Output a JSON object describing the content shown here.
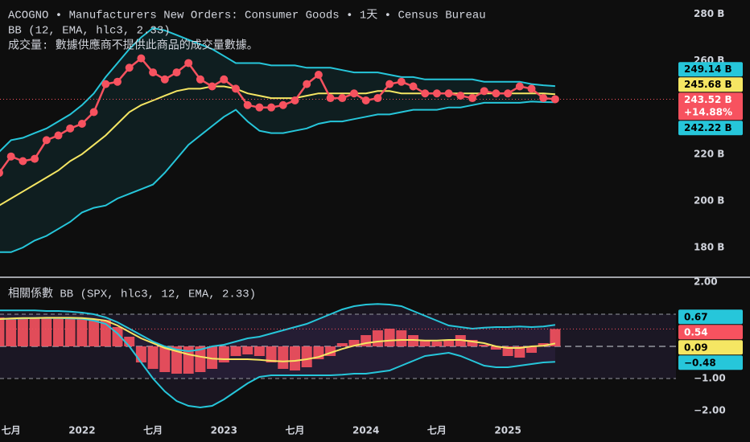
{
  "chart_data": [
    {
      "type": "line",
      "title": "ACOGNO • Manufacturers New Orders: Consumer Goods • 1天 • Census Bureau",
      "subtitle": "BB (12, EMA, hlc3, 2.33)",
      "annotation": "成交量: 數據供應商不提供此商品的成交量數據。",
      "categories": [
        null,
        "七月",
        null,
        null,
        null,
        null,
        null,
        "2022",
        null,
        null,
        null,
        null,
        null,
        "七月",
        null,
        null,
        null,
        null,
        null,
        "2023",
        null,
        null,
        null,
        null,
        null,
        "七月",
        null,
        null,
        null,
        null,
        null,
        "2024",
        null,
        null,
        null,
        null,
        null,
        "七月",
        null,
        null,
        null,
        null,
        null,
        "2025",
        null,
        null,
        null,
        null
      ],
      "series": [
        {
          "color": "#f7525f",
          "markers": true,
          "values": [
            212,
            219,
            217,
            218,
            226,
            228,
            231,
            233,
            238,
            250,
            251,
            257,
            261,
            255,
            252,
            255,
            259,
            252,
            249,
            252,
            248,
            241,
            240,
            240,
            241,
            243,
            250,
            254,
            244,
            244,
            246,
            243,
            244,
            250,
            251,
            249,
            246,
            246,
            246,
            245,
            244,
            247,
            246,
            246,
            249,
            248,
            244,
            243.52
          ]
        },
        {
          "color": "#f5e663",
          "values": [
            198,
            201,
            204,
            207,
            210,
            213,
            217,
            220,
            224,
            228,
            233,
            238,
            241,
            243,
            245,
            247,
            248,
            248,
            249,
            249,
            248,
            246,
            245,
            244,
            244,
            244,
            245,
            246,
            246,
            246,
            246,
            246,
            247,
            247,
            246,
            246,
            246,
            246,
            246,
            246,
            246,
            246,
            246,
            246,
            246,
            246,
            246,
            245.68
          ]
        },
        {
          "color": "#26c6da",
          "values": [
            221,
            226,
            227,
            229,
            231,
            234,
            237,
            241,
            246,
            253,
            259,
            265,
            270,
            274,
            273,
            271,
            269,
            267,
            265,
            262,
            259,
            259,
            259,
            258,
            258,
            258,
            257,
            257,
            257,
            256,
            255,
            255,
            255,
            254,
            253,
            253,
            252,
            252,
            252,
            252,
            252,
            251,
            251,
            251,
            251,
            250,
            249.5,
            249.14
          ]
        },
        {
          "color": "#26c6da",
          "values": [
            178,
            178,
            180,
            183,
            185,
            188,
            191,
            195,
            197,
            198,
            201,
            203,
            205,
            207,
            212,
            218,
            224,
            228,
            232,
            236,
            239,
            234,
            230,
            229,
            229,
            230,
            231,
            233,
            234,
            234,
            235,
            236,
            237,
            237,
            238,
            239,
            239,
            239,
            240,
            240,
            241,
            242,
            242,
            242,
            242,
            242.5,
            242.3,
            242.22
          ]
        }
      ],
      "band_fill": "rgba(38,198,218,0.09)",
      "ylim": [
        169,
        286
      ],
      "yticks": [
        {
          "value": 280,
          "label": "280 B"
        },
        {
          "value": 260,
          "label": "260 B"
        },
        {
          "value": 220,
          "label": "220 B"
        },
        {
          "value": 200,
          "label": "200 B"
        },
        {
          "value": 180,
          "label": "180 B"
        }
      ],
      "price_labels": [
        {
          "value": 249.14,
          "label": "249.14 B",
          "color": "#26c6da",
          "text_color": "#000000"
        },
        {
          "value": 245.68,
          "label": "245.68 B",
          "color": "#f5e663",
          "text_color": "#000000"
        },
        {
          "value": 243.52,
          "label": "243.52 B",
          "change": "+14.88%",
          "color": "#f7525f",
          "text_color": "#ffffff",
          "price_line": true
        },
        {
          "value": 242.22,
          "label": "242.22 B",
          "color": "#26c6da",
          "text_color": "#000000"
        }
      ]
    },
    {
      "type": "bar",
      "title": "相關係數 BB (SPX, hlc3, 12, EMA, 2.33)",
      "values": [
        0.9,
        0.88,
        0.88,
        0.9,
        0.9,
        0.9,
        0.9,
        0.88,
        0.85,
        0.82,
        0.6,
        0.3,
        -0.5,
        -0.7,
        -0.8,
        -0.85,
        -0.85,
        -0.8,
        -0.7,
        -0.5,
        -0.3,
        -0.25,
        -0.3,
        -0.5,
        -0.7,
        -0.75,
        -0.65,
        -0.4,
        -0.3,
        0.1,
        0.2,
        0.35,
        0.5,
        0.55,
        0.5,
        0.35,
        0.2,
        0.15,
        0.2,
        0.35,
        0.2,
        0.05,
        -0.1,
        -0.3,
        -0.35,
        -0.2,
        0.1,
        0.54
      ],
      "color": "#f7525f",
      "series": [
        {
          "color": "#f5e663",
          "values": [
            0.85,
            0.87,
            0.88,
            0.88,
            0.89,
            0.89,
            0.89,
            0.88,
            0.85,
            0.8,
            0.65,
            0.45,
            0.25,
            0.1,
            -0.05,
            -0.15,
            -0.25,
            -0.32,
            -0.38,
            -0.4,
            -0.4,
            -0.4,
            -0.42,
            -0.45,
            -0.47,
            -0.45,
            -0.4,
            -0.33,
            -0.2,
            -0.08,
            0.02,
            0.1,
            0.15,
            0.18,
            0.2,
            0.2,
            0.18,
            0.18,
            0.2,
            0.2,
            0.15,
            0.1,
            0.0,
            -0.05,
            -0.05,
            0.0,
            0.02,
            0.09
          ]
        },
        {
          "color": "#26c6da",
          "values": [
            1.12,
            1.12,
            1.12,
            1.12,
            1.1,
            1.1,
            1.08,
            1.05,
            1.0,
            0.9,
            0.75,
            0.55,
            0.35,
            0.15,
            0.0,
            -0.1,
            -0.15,
            -0.1,
            0.0,
            0.05,
            0.15,
            0.25,
            0.3,
            0.4,
            0.5,
            0.6,
            0.7,
            0.85,
            1.0,
            1.15,
            1.25,
            1.3,
            1.32,
            1.3,
            1.25,
            1.1,
            0.95,
            0.8,
            0.65,
            0.6,
            0.55,
            0.58,
            0.6,
            0.6,
            0.62,
            0.6,
            0.62,
            0.67
          ]
        },
        {
          "color": "#26c6da",
          "values": [
            0.85,
            0.86,
            0.87,
            0.88,
            0.88,
            0.88,
            0.87,
            0.86,
            0.8,
            0.7,
            0.4,
            0.0,
            -0.5,
            -1.0,
            -1.4,
            -1.7,
            -1.85,
            -1.9,
            -1.85,
            -1.65,
            -1.4,
            -1.15,
            -0.95,
            -0.9,
            -0.9,
            -0.9,
            -0.9,
            -0.9,
            -0.9,
            -0.88,
            -0.85,
            -0.85,
            -0.8,
            -0.75,
            -0.6,
            -0.45,
            -0.3,
            -0.25,
            -0.2,
            -0.3,
            -0.45,
            -0.6,
            -0.65,
            -0.65,
            -0.6,
            -0.55,
            -0.5,
            -0.48
          ]
        }
      ],
      "band_fill": "rgba(126,87,194,0.10)",
      "levels": [
        1,
        0,
        -1
      ],
      "level_fill": "rgba(126,87,194,0.12)",
      "ylim": [
        -2.4,
        2.1
      ],
      "yticks": [
        {
          "value": 2,
          "label": "2.00"
        },
        {
          "value": -1,
          "label": "−1.00"
        },
        {
          "value": -2,
          "label": "−2.00"
        }
      ],
      "price_labels": [
        {
          "value": 0.67,
          "label": "0.67",
          "color": "#26c6da",
          "text_color": "#000000"
        },
        {
          "value": 0.54,
          "label": "0.54",
          "color": "#f7525f",
          "text_color": "#ffffff",
          "price_line": true
        },
        {
          "value": 0.09,
          "label": "0.09",
          "color": "#f5e663",
          "text_color": "#000000"
        },
        {
          "value": -0.48,
          "label": "−0.48",
          "color": "#26c6da",
          "text_color": "#000000"
        }
      ]
    }
  ]
}
